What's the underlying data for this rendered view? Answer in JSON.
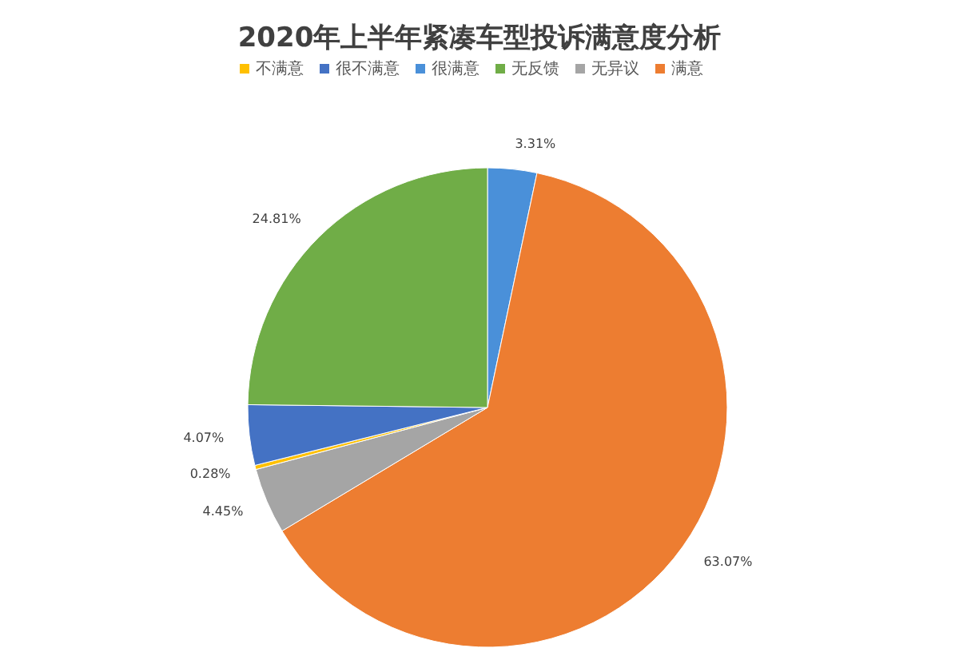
{
  "chart_data": {
    "type": "pie",
    "title": "2020年上半年紧凑车型投诉满意度分析",
    "categories": [
      "很满意",
      "满意",
      "无异议",
      "不满意",
      "很不满意",
      "无反馈"
    ],
    "values": [
      3.31,
      63.07,
      4.45,
      0.28,
      4.07,
      24.81
    ],
    "value_labels": [
      "3.31%",
      "63.07%",
      "4.45%",
      "0.28%",
      "4.07%",
      "24.81%"
    ],
    "colors": [
      "#4a90d9",
      "#ed7d31",
      "#a5a5a5",
      "#ffc000",
      "#4472c4",
      "#70ad47"
    ],
    "legend": "top"
  }
}
